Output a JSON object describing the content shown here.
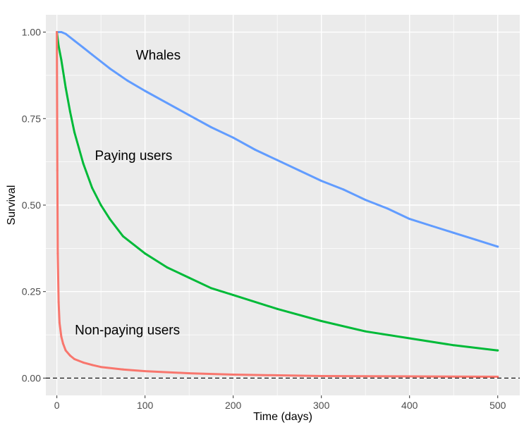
{
  "chart_data": {
    "type": "line",
    "title": "",
    "xlabel": "Time (days)",
    "ylabel": "Survival",
    "xlim": [
      -12.5,
      525
    ],
    "ylim": [
      -0.05,
      1.05
    ],
    "grid": true,
    "legend": "none",
    "x_ticks": [
      0,
      100,
      200,
      300,
      400,
      500
    ],
    "x_tick_labels": [
      "0",
      "100",
      "200",
      "300",
      "400",
      "500"
    ],
    "y_ticks": [
      0,
      0.25,
      0.5,
      0.75,
      1.0
    ],
    "y_tick_labels": [
      "0.00",
      "0.25",
      "0.50",
      "0.75",
      "1.00"
    ],
    "reference_line": {
      "y": 0,
      "style": "dashed",
      "color": "#000000"
    },
    "series": [
      {
        "label": "Whales",
        "color": "#619CFF",
        "x": [
          0,
          5,
          10,
          20,
          30,
          40,
          60,
          80,
          100,
          125,
          150,
          175,
          200,
          225,
          250,
          275,
          300,
          325,
          350,
          375,
          400,
          425,
          450,
          475,
          500
        ],
        "y": [
          1.0,
          1.0,
          0.995,
          0.975,
          0.955,
          0.935,
          0.895,
          0.86,
          0.83,
          0.795,
          0.76,
          0.725,
          0.695,
          0.66,
          0.63,
          0.6,
          0.57,
          0.545,
          0.515,
          0.49,
          0.46,
          0.44,
          0.42,
          0.4,
          0.38
        ]
      },
      {
        "label": "Paying users",
        "color": "#00BA38",
        "x": [
          0,
          2,
          5,
          10,
          15,
          20,
          30,
          40,
          50,
          60,
          75,
          100,
          125,
          150,
          175,
          200,
          250,
          300,
          350,
          400,
          450,
          500
        ],
        "y": [
          1.0,
          0.96,
          0.92,
          0.84,
          0.77,
          0.71,
          0.62,
          0.55,
          0.5,
          0.46,
          0.41,
          0.36,
          0.32,
          0.29,
          0.26,
          0.24,
          0.2,
          0.165,
          0.135,
          0.115,
          0.095,
          0.08
        ]
      },
      {
        "label": "Non-paying users",
        "color": "#F8766D",
        "x": [
          0,
          0.5,
          1,
          2,
          3,
          5,
          7,
          10,
          15,
          20,
          30,
          40,
          50,
          75,
          100,
          150,
          200,
          300,
          400,
          500
        ],
        "y": [
          1.0,
          0.6,
          0.36,
          0.22,
          0.16,
          0.12,
          0.1,
          0.08,
          0.065,
          0.055,
          0.045,
          0.038,
          0.032,
          0.025,
          0.02,
          0.014,
          0.01,
          0.006,
          0.005,
          0.004
        ]
      }
    ],
    "annotations": [
      {
        "text": "Whales",
        "x": 115,
        "y": 0.935
      },
      {
        "text": "Paying users",
        "x": 87,
        "y": 0.645
      },
      {
        "text": "Non-paying users",
        "x": 80,
        "y": 0.14
      }
    ]
  }
}
